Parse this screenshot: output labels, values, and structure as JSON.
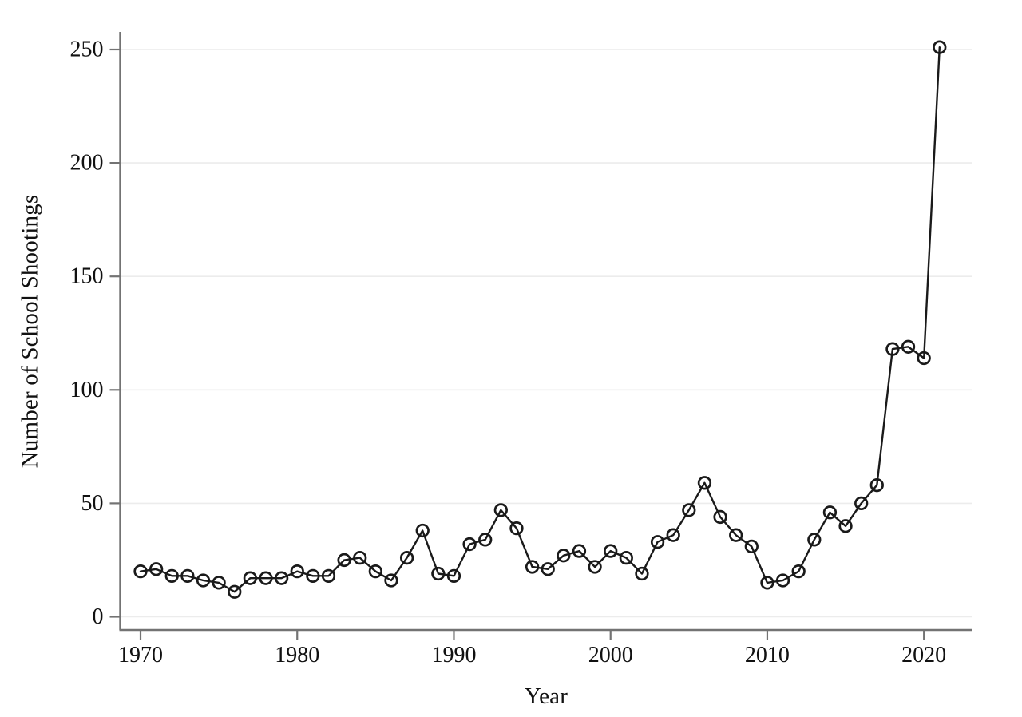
{
  "figure": {
    "background": "#ffffff",
    "line_color": "#1a1a1a",
    "marker_color": "#1a1a1a",
    "axis_color": "#737373",
    "grid_color": "#ececec",
    "tick_color": "#737373",
    "label_color": "#111111"
  },
  "chart_data": {
    "type": "line",
    "title": "",
    "xlabel": "Year",
    "ylabel": "Number of School Shootings",
    "marker": "hollow-circle",
    "grid": "horizontal-only",
    "legend": "none",
    "xlim": [
      1968.7,
      2023.1
    ],
    "ylim": [
      0,
      257
    ],
    "xticks": [
      1970,
      1980,
      1990,
      2000,
      2010,
      2020
    ],
    "yticks": [
      0,
      50,
      100,
      150,
      200,
      250
    ],
    "x": [
      1970,
      1971,
      1972,
      1973,
      1974,
      1975,
      1976,
      1977,
      1978,
      1979,
      1980,
      1981,
      1982,
      1983,
      1984,
      1985,
      1986,
      1987,
      1988,
      1989,
      1990,
      1991,
      1992,
      1993,
      1994,
      1995,
      1996,
      1997,
      1998,
      1999,
      2000,
      2001,
      2002,
      2003,
      2004,
      2005,
      2006,
      2007,
      2008,
      2009,
      2010,
      2011,
      2012,
      2013,
      2014,
      2015,
      2016,
      2017,
      2018,
      2019,
      2020,
      2021
    ],
    "values": [
      20,
      21,
      18,
      18,
      16,
      15,
      11,
      17,
      17,
      17,
      20,
      18,
      18,
      25,
      26,
      20,
      16,
      26,
      38,
      19,
      18,
      32,
      34,
      47,
      39,
      22,
      21,
      27,
      29,
      22,
      29,
      26,
      19,
      33,
      36,
      47,
      59,
      44,
      36,
      31,
      15,
      16,
      20,
      34,
      46,
      40,
      50,
      58,
      118,
      119,
      114,
      251
    ]
  }
}
